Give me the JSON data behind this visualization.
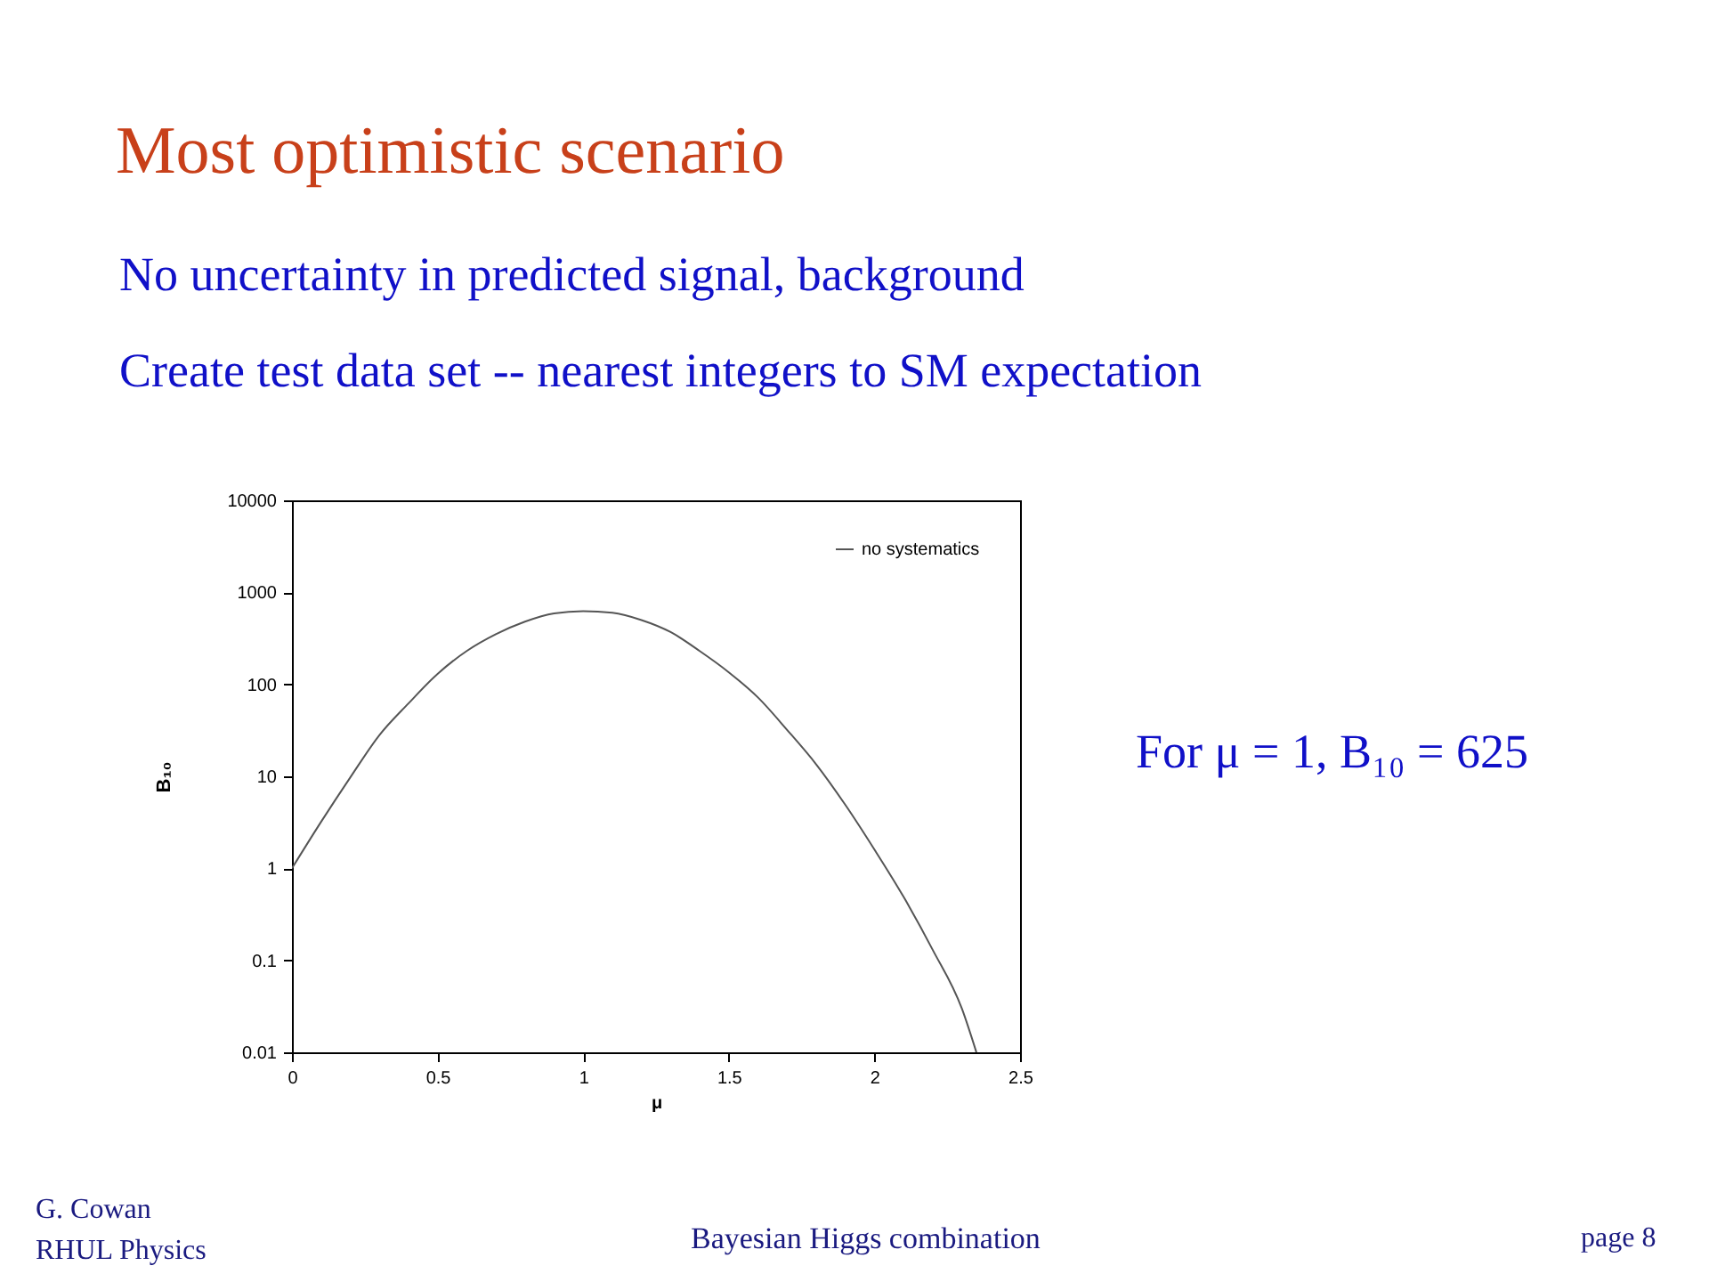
{
  "chart_data": {
    "type": "line",
    "title": "Most optimistic scenario",
    "xlabel": "μ",
    "ylabel": "B₁₀",
    "x": [
      0,
      0.1,
      0.2,
      0.3,
      0.4,
      0.5,
      0.6,
      0.7,
      0.8,
      0.9,
      1.0,
      1.1,
      1.2,
      1.3,
      1.4,
      1.5,
      1.6,
      1.7,
      1.8,
      1.9,
      2.0,
      2.1,
      2.2,
      2.3,
      2.35
    ],
    "series": [
      {
        "name": "no systematics",
        "color": "#555555",
        "values": [
          1,
          3.2,
          9.7,
          28,
          62,
          130,
          230,
          350,
          480,
          590,
          625,
          600,
          500,
          370,
          230,
          135,
          72,
          32,
          13.5,
          4.9,
          1.6,
          0.49,
          0.13,
          0.03,
          0.01
        ]
      }
    ],
    "xlim": [
      0,
      2.5
    ],
    "xticks": [
      0,
      0.5,
      1,
      1.5,
      2,
      2.5
    ],
    "ylim": [
      0.01,
      10000
    ],
    "yticks": [
      0.01,
      0.1,
      1,
      10,
      100,
      1000,
      10000
    ],
    "log": "y",
    "grid": false,
    "legend": "top right",
    "marker": "none",
    "line_style": "solid",
    "annotations": [
      "No uncertainty in predicted signal, background",
      "Create test data set -- nearest integers to SM expectation",
      "For μ = 1, B₁₀ = 625",
      "G. Cowan",
      "RHUL Physics",
      "Bayesian Higgs combination",
      "page 8"
    ]
  }
}
